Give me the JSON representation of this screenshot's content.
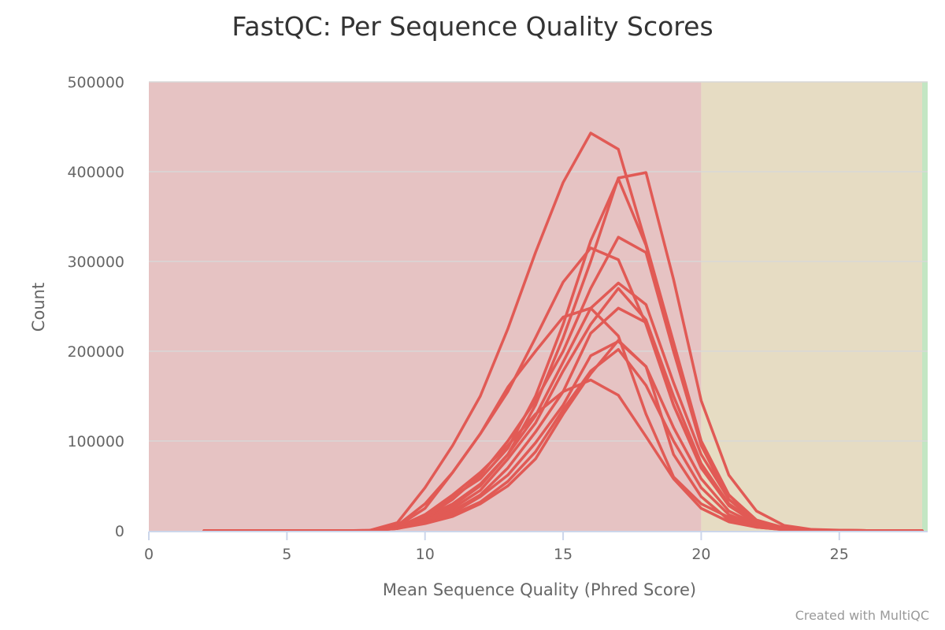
{
  "title": "FastQC: Per Sequence Quality Scores",
  "credit": "Created with MultiQC",
  "colors": {
    "fail_band": "#e6c3c3",
    "warn_band": "#e6dcc3",
    "pass_band": "#c3e6c3",
    "series": "#e15a55",
    "grid": "#d8d8d8",
    "axis": "#ccd6eb"
  },
  "chart_data": {
    "type": "line",
    "title": "FastQC: Per Sequence Quality Scores",
    "xlabel": "Mean Sequence Quality (Phred Score)",
    "ylabel": "Count",
    "xlim": [
      0,
      28.2
    ],
    "ylim": [
      0,
      500000
    ],
    "x_ticks": [
      0,
      5,
      10,
      15,
      20,
      25
    ],
    "y_ticks": [
      0,
      100000,
      200000,
      300000,
      400000,
      500000
    ],
    "x_tick_labels": [
      "0",
      "5",
      "10",
      "15",
      "20",
      "25"
    ],
    "y_tick_labels": [
      "0",
      "100000",
      "200000",
      "300000",
      "400000",
      "500000"
    ],
    "grid": true,
    "bands": [
      {
        "from": 0,
        "to": 20,
        "status": "fail"
      },
      {
        "from": 20,
        "to": 28,
        "status": "warn"
      },
      {
        "from": 28,
        "to": 28.2,
        "status": "pass"
      }
    ],
    "x": [
      2,
      3,
      4,
      5,
      6,
      7,
      8,
      9,
      10,
      11,
      12,
      13,
      14,
      15,
      16,
      17,
      18,
      19,
      20,
      21,
      22,
      23,
      24,
      25,
      26,
      27,
      28
    ],
    "series": [
      {
        "values": [
          0,
          0,
          0,
          0,
          0,
          0,
          500,
          9000,
          48000,
          95000,
          150000,
          225000,
          310000,
          388000,
          443000,
          425000,
          320000,
          210000,
          100000,
          40000,
          10000,
          3000,
          1000,
          500,
          200,
          100,
          0
        ]
      },
      {
        "values": [
          0,
          0,
          0,
          0,
          0,
          0,
          400,
          6000,
          30000,
          65000,
          108000,
          155000,
          215000,
          277000,
          315000,
          302000,
          230000,
          140000,
          70000,
          30000,
          8000,
          2500,
          800,
          400,
          150,
          80,
          0
        ]
      },
      {
        "values": [
          0,
          0,
          0,
          0,
          0,
          0,
          300,
          5000,
          25000,
          65000,
          108000,
          160000,
          200000,
          238000,
          248000,
          217000,
          130000,
          60000,
          30000,
          15000,
          5000,
          1500,
          500,
          200,
          100,
          50,
          0
        ]
      },
      {
        "values": [
          0,
          0,
          0,
          0,
          0,
          0,
          300,
          4000,
          18000,
          40000,
          65000,
          95000,
          130000,
          155000,
          168000,
          151000,
          105000,
          58000,
          25000,
          10000,
          4000,
          1200,
          400,
          200,
          100,
          50,
          0
        ]
      },
      {
        "values": [
          0,
          0,
          0,
          0,
          0,
          0,
          300,
          4000,
          18000,
          38000,
          58000,
          92000,
          150000,
          230000,
          323000,
          392000,
          318000,
          200000,
          95000,
          35000,
          10000,
          3000,
          1000,
          400,
          200,
          100,
          0
        ]
      },
      {
        "values": [
          0,
          0,
          0,
          0,
          0,
          0,
          300,
          3500,
          15000,
          30000,
          52000,
          85000,
          140000,
          215000,
          300000,
          393000,
          399000,
          280000,
          145000,
          62000,
          22000,
          6000,
          1500,
          600,
          300,
          150,
          0
        ]
      },
      {
        "values": [
          0,
          0,
          0,
          0,
          0,
          0,
          300,
          3500,
          15000,
          35000,
          62000,
          100000,
          145000,
          200000,
          270000,
          327000,
          310000,
          200000,
          100000,
          40000,
          12000,
          3500,
          1000,
          400,
          200,
          100,
          0
        ]
      },
      {
        "values": [
          0,
          0,
          0,
          0,
          0,
          0,
          300,
          3000,
          13000,
          28000,
          50000,
          85000,
          128000,
          188000,
          248000,
          276000,
          252000,
          165000,
          85000,
          35000,
          10000,
          3000,
          900,
          400,
          200,
          100,
          0
        ]
      },
      {
        "values": [
          0,
          0,
          0,
          0,
          0,
          0,
          300,
          3000,
          12000,
          25000,
          45000,
          80000,
          120000,
          178000,
          230000,
          270000,
          235000,
          150000,
          75000,
          30000,
          9000,
          2500,
          800,
          300,
          150,
          80,
          0
        ]
      },
      {
        "values": [
          0,
          0,
          0,
          0,
          0,
          0,
          300,
          3000,
          12000,
          22000,
          40000,
          70000,
          110000,
          155000,
          220000,
          248000,
          232000,
          140000,
          70000,
          28000,
          8000,
          2200,
          700,
          300,
          150,
          80,
          0
        ]
      },
      {
        "values": [
          0,
          0,
          0,
          0,
          0,
          0,
          300,
          2500,
          10000,
          20000,
          38000,
          62000,
          98000,
          140000,
          195000,
          211000,
          183000,
          115000,
          58000,
          22000,
          7000,
          2000,
          600,
          300,
          150,
          80,
          0
        ]
      },
      {
        "values": [
          0,
          0,
          0,
          0,
          0,
          0,
          300,
          2500,
          9000,
          18000,
          32000,
          55000,
          88000,
          135000,
          178000,
          202000,
          162000,
          100000,
          48000,
          18000,
          5500,
          1600,
          500,
          250,
          120,
          60,
          0
        ]
      },
      {
        "values": [
          0,
          0,
          0,
          0,
          0,
          0,
          300,
          2500,
          8000,
          16000,
          30000,
          50000,
          80000,
          130000,
          175000,
          212000,
          183000,
          85000,
          38000,
          12000,
          4000,
          1200,
          400,
          200,
          100,
          50,
          0
        ]
      }
    ]
  }
}
